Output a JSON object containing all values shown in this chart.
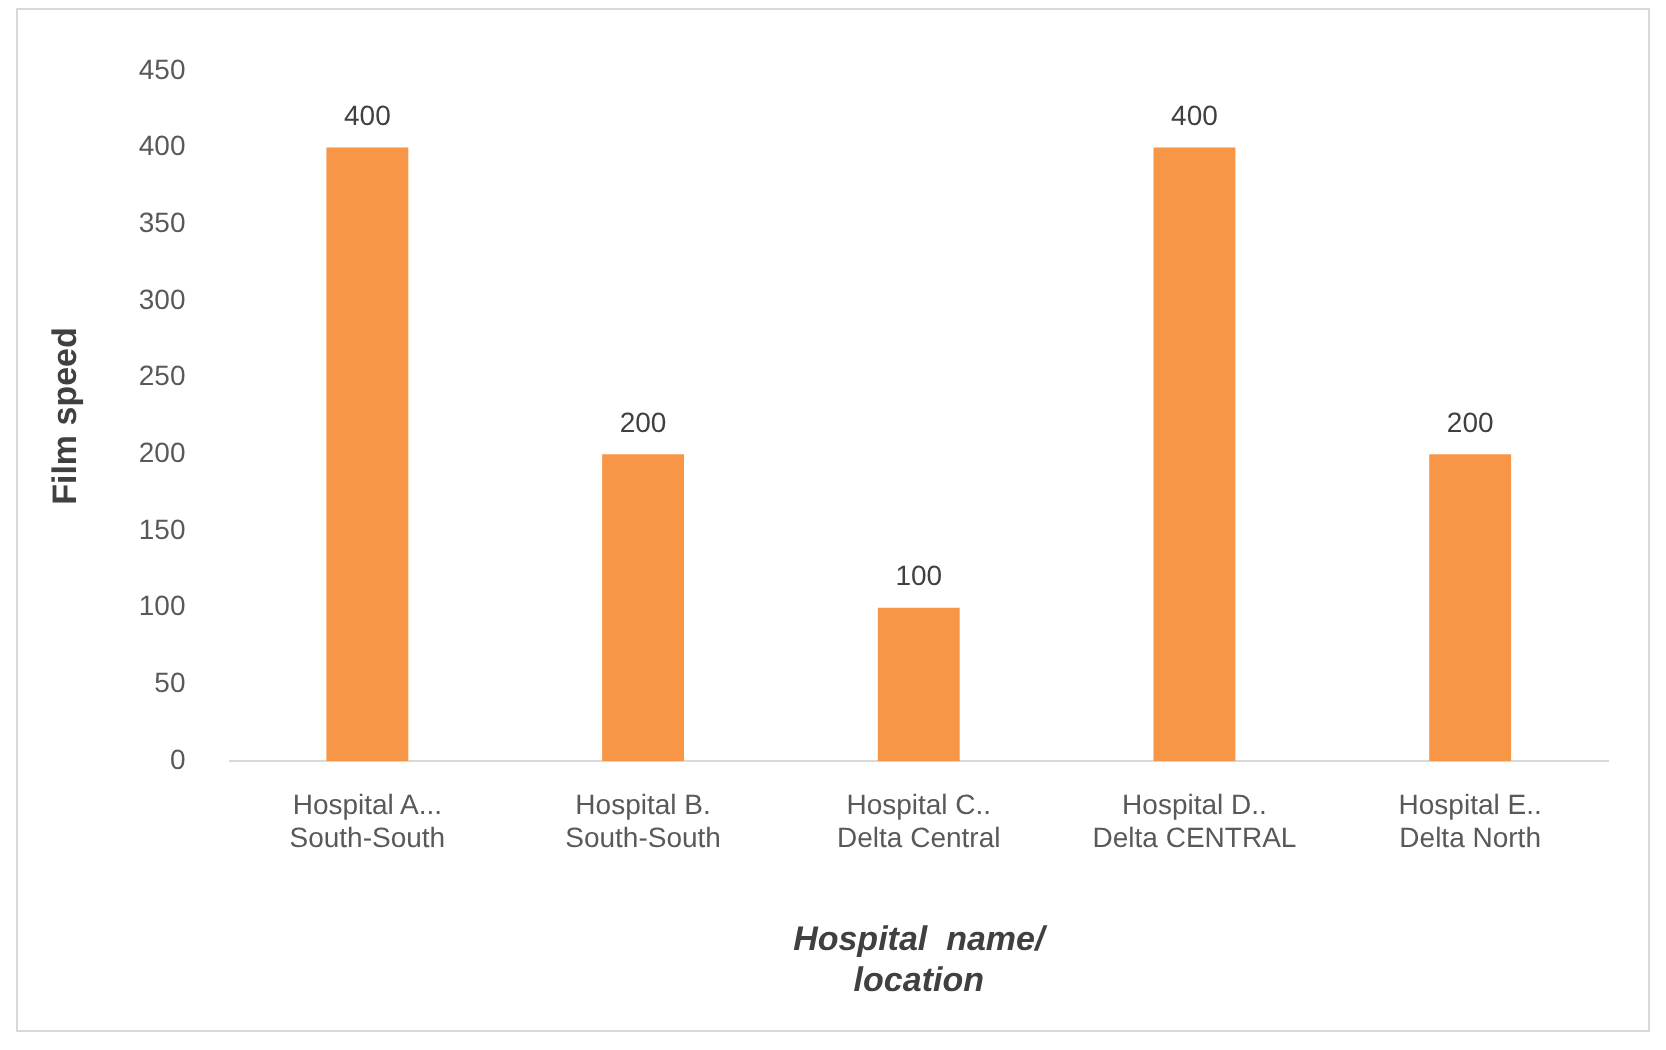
{
  "chart_data": {
    "type": "bar",
    "xlabel": "Hospital  name/\nlocation",
    "ylabel": "Film speed",
    "categories": [
      "Hospital A...\nSouth-South",
      "Hospital B.\nSouth-South",
      "Hospital C..\nDelta Central",
      "Hospital D..\nDelta CENTRAL",
      "Hospital E..\nDelta North"
    ],
    "values": [
      400,
      200,
      100,
      400,
      200
    ],
    "color": "#f79646",
    "ylim": [
      0,
      450
    ],
    "yticks": [
      0,
      50,
      100,
      150,
      200,
      250,
      300,
      350,
      400,
      450
    ],
    "grid": false,
    "data_labels": true
  }
}
